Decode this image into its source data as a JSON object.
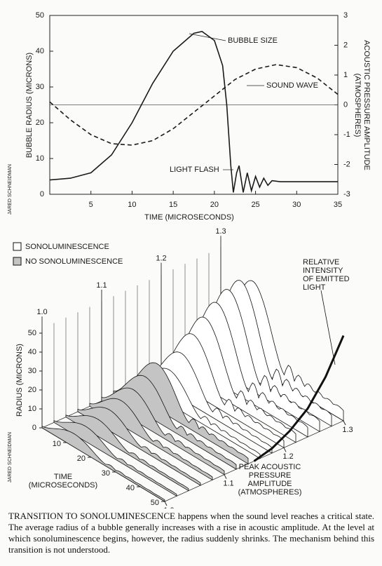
{
  "chart_data": [
    {
      "type": "line",
      "x_label": "TIME (MICROSECONDS)",
      "y_label": "BUBBLE RADIUS (MICRONS)",
      "y2_label": [
        "ACOUSTIC PRESSURE AMPLITUDE",
        "(ATMOSPHERES)"
      ],
      "credit": "JARED SCHNEIDMAN",
      "xlim": [
        0,
        35
      ],
      "xticks": [
        5,
        10,
        15,
        20,
        25,
        30,
        35
      ],
      "ylim": [
        0,
        50
      ],
      "yticks": [
        0,
        10,
        20,
        30,
        40,
        50
      ],
      "y2lim": [
        -3,
        3
      ],
      "y2ticks": [
        -3,
        -2,
        -1,
        0,
        1,
        2,
        3
      ],
      "y2_reference_line": 0,
      "annotation": "LIGHT FLASH",
      "series": [
        {
          "name": "BUBBLE SIZE",
          "color": "#1a1a1a",
          "dashed": false,
          "x": [
            0,
            2.5,
            5,
            7.5,
            10,
            12.5,
            15,
            17.5,
            18.5,
            20,
            21,
            21.5,
            22,
            22.3,
            22.7,
            23,
            23.5,
            24,
            24.5,
            25,
            25.5,
            26,
            26.5,
            27,
            28,
            30,
            35
          ],
          "values": [
            4,
            4.5,
            6,
            11,
            20,
            31,
            40,
            45,
            45.5,
            43,
            36,
            25,
            8,
            0.5,
            6,
            8,
            0.5,
            6,
            1,
            5,
            2,
            4.5,
            2.5,
            3.8,
            3.5,
            3.5,
            3.5
          ]
        },
        {
          "name": "SOUND WAVE",
          "color": "#1a1a1a",
          "dashed": true,
          "axis": "y2",
          "x": [
            0,
            2.5,
            5,
            7.5,
            10,
            12.5,
            15,
            17.5,
            20,
            22.5,
            25,
            27.5,
            30,
            32.5,
            35
          ],
          "values": [
            0.1,
            -0.5,
            -1.0,
            -1.3,
            -1.35,
            -1.2,
            -0.8,
            -0.25,
            0.3,
            0.85,
            1.2,
            1.35,
            1.25,
            0.9,
            0.35
          ]
        }
      ]
    },
    {
      "type": "waterfall",
      "y_label": "RADIUS (MICRONS)",
      "time_label": [
        "TIME",
        "(MICROSECONDS)"
      ],
      "pressure_label": [
        "PEAK ACOUSTIC",
        "PRESSURE",
        "AMPLITUDE",
        "(ATMOSPHERES)"
      ],
      "credit": "JARED SCHNEIDMAN",
      "ylim": [
        0,
        50
      ],
      "yticks": [
        0,
        10,
        20,
        30,
        40,
        50
      ],
      "tlim": [
        0,
        50
      ],
      "tticks": [
        10,
        20,
        30,
        40,
        50
      ],
      "plim": [
        1,
        1.3
      ],
      "pticks": [
        {
          "value": 1,
          "label": "1.0"
        },
        1.1,
        1.2,
        1.3
      ],
      "series": [
        {
          "name": "SONOLUMINESCENCE",
          "fill": "#ffffff",
          "pressures": [
            1.16,
            1.18,
            1.2,
            1.22,
            1.24,
            1.26,
            1.28,
            1.3
          ],
          "values": [
            18,
            24,
            31,
            37,
            42,
            46,
            48,
            45
          ]
        },
        {
          "name": "NO SONOLUMINESCENCE",
          "fill": "#c4c4c4",
          "pressures": [
            1,
            1.02,
            1.04,
            1.06,
            1.08,
            1.1,
            1.12,
            1.14
          ],
          "values": [
            7,
            8,
            9,
            11,
            13,
            16,
            20,
            24
          ]
        }
      ],
      "intensity": {
        "name": [
          "RELATIVE",
          "INTENSITY",
          "OF EMITTED",
          "LIGHT"
        ],
        "pressures": [
          1.15,
          1.18,
          1.21,
          1.24,
          1.27,
          1.3
        ],
        "values": [
          0,
          0.05,
          0.15,
          0.3,
          0.55,
          0.9
        ]
      }
    }
  ],
  "caption": {
    "lead": "TRANSITION TO SONOLUMINESCENCE",
    "text": "happens when the sound level reaches a critical state. The average radius of a bubble generally increases with a rise in acoustic amplitude. At the level at which sonoluminescence begins, however, the radius suddenly shrinks. The mechanism behind this transition is not understood."
  }
}
